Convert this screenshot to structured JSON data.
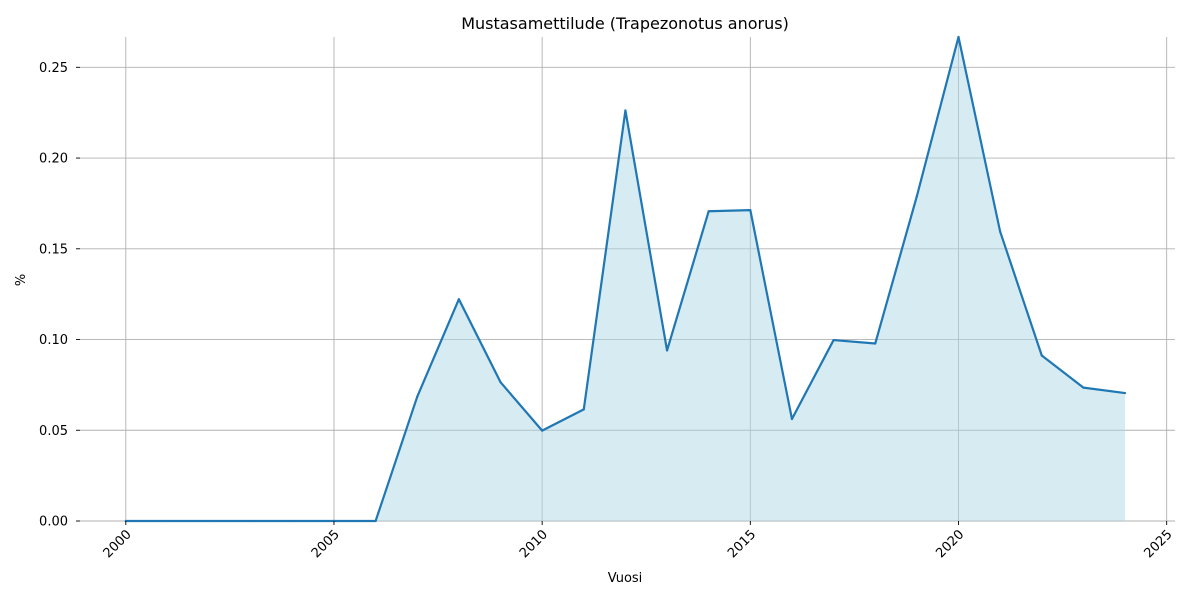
{
  "chart_data": {
    "type": "area",
    "title": "Mustasamettilude (Trapezonotus anorus)",
    "xlabel": "Vuosi",
    "ylabel": "%",
    "xlim": [
      1998.9,
      2025.2
    ],
    "ylim": [
      0,
      0.2667
    ],
    "x_ticks": [
      2000,
      2005,
      2010,
      2015,
      2020,
      2025
    ],
    "y_ticks": [
      0.0,
      0.05,
      0.1,
      0.15,
      0.2,
      0.25
    ],
    "y_tick_labels": [
      "0.00",
      "0.05",
      "0.10",
      "0.15",
      "0.20",
      "0.25"
    ],
    "grid": true,
    "series": [
      {
        "x": [
          2000,
          2001,
          2002,
          2003,
          2004,
          2005,
          2006,
          2007,
          2008,
          2009,
          2010,
          2011,
          2012,
          2013,
          2014,
          2015,
          2016,
          2017,
          2018,
          2019,
          2020,
          2021,
          2022,
          2023,
          2024
        ],
        "values": [
          0,
          0,
          0,
          0,
          0,
          0,
          0,
          0.0685,
          0.1222,
          0.0765,
          0.0498,
          0.0615,
          0.2262,
          0.094,
          0.1707,
          0.1713,
          0.0562,
          0.0997,
          0.0978,
          0.179,
          0.2667,
          0.1595,
          0.0912,
          0.0735,
          0.0705
        ]
      }
    ],
    "colors": {
      "line": "#1f77b4",
      "fill": "#add8e6"
    }
  }
}
